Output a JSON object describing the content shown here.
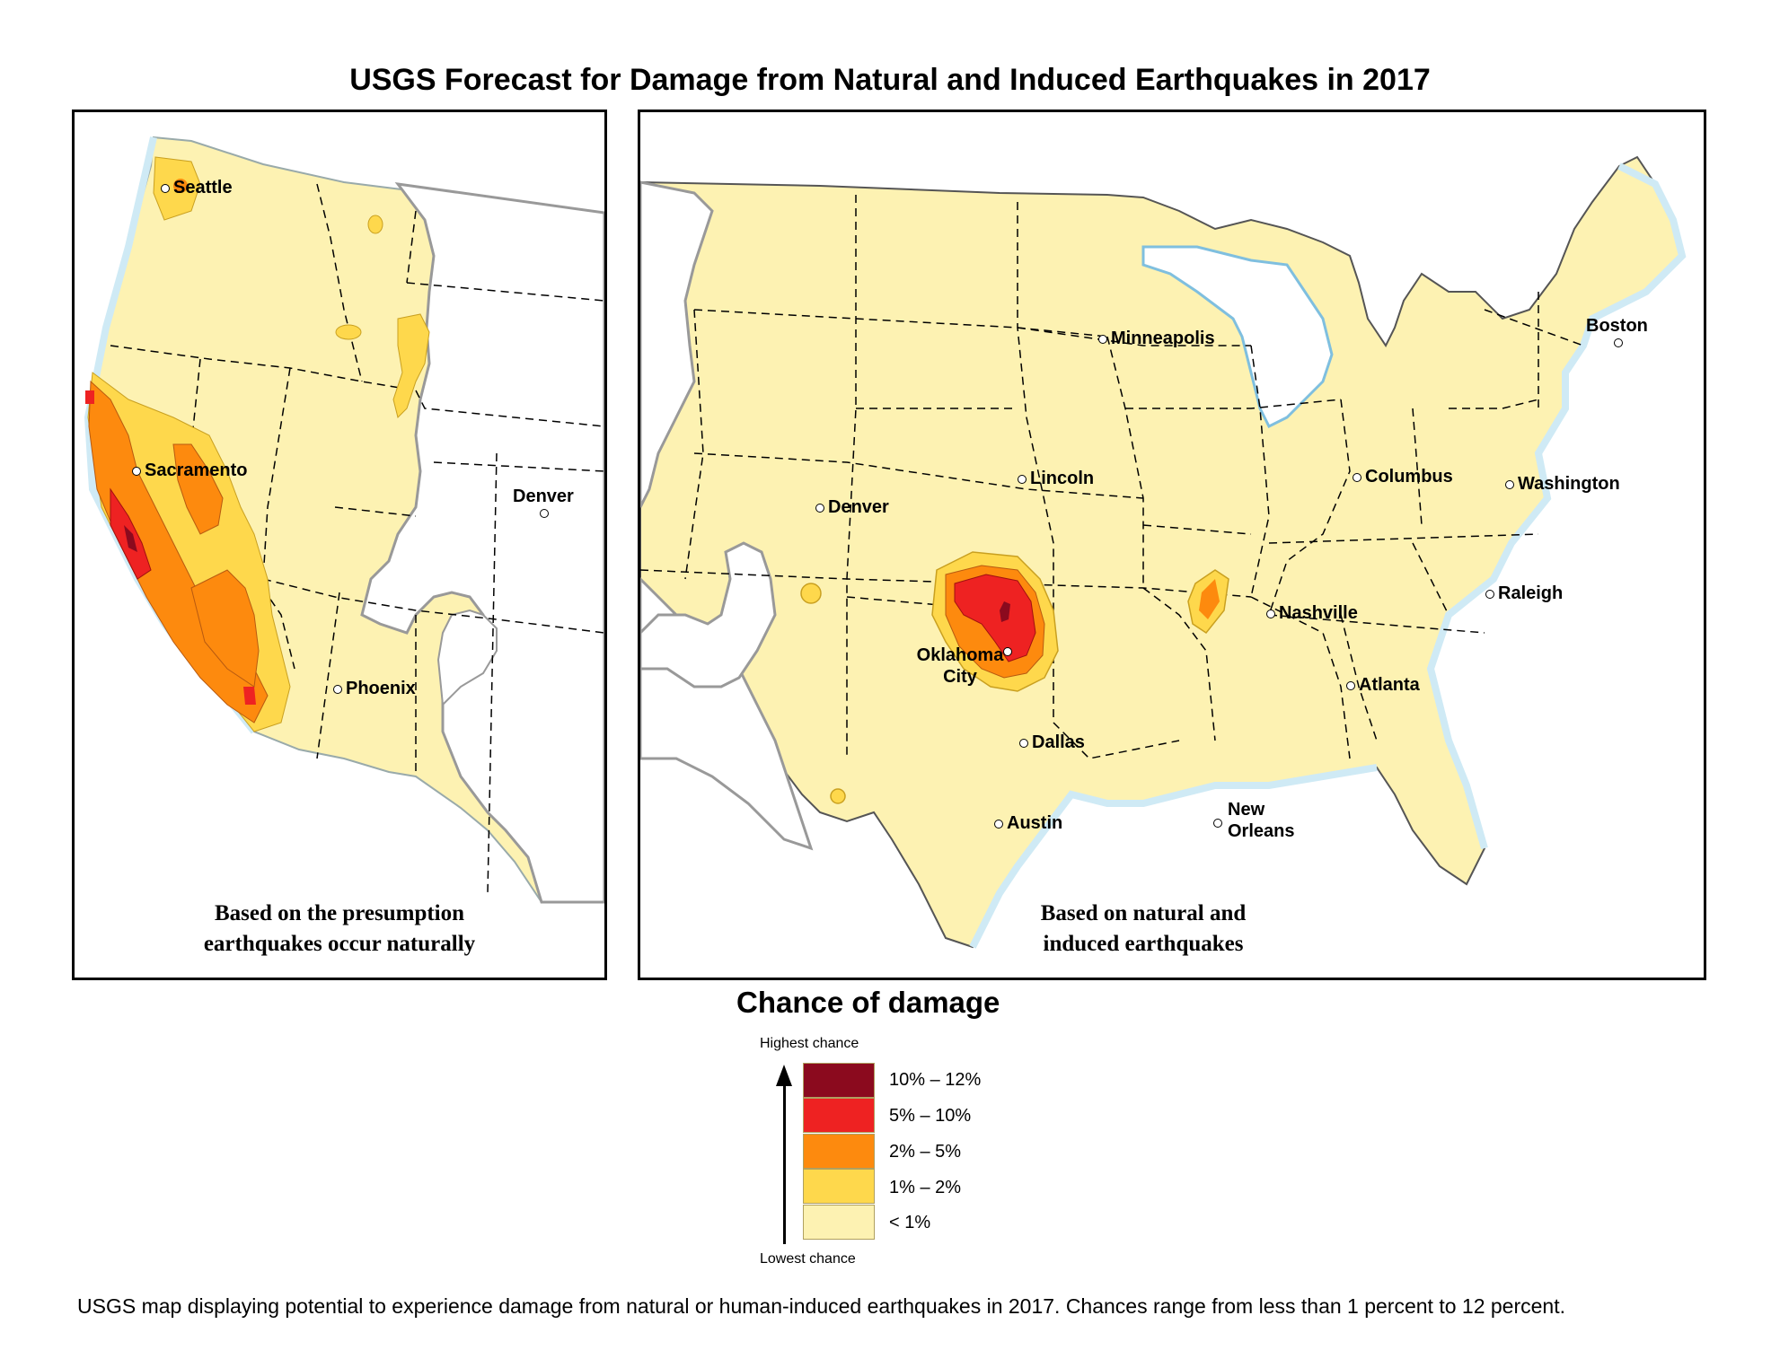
{
  "title": "USGS Forecast for Damage from Natural and Induced Earthquakes in 2017",
  "left_map": {
    "caption_line1": "Based on the presumption",
    "caption_line2": "earthquakes occur naturally",
    "cities": [
      "Seattle",
      "Sacramento",
      "Denver",
      "Phoenix"
    ]
  },
  "right_map": {
    "caption_line1": "Based on natural and",
    "caption_line2": "induced earthquakes",
    "cities": [
      "Minneapolis",
      "Boston",
      "Lincoln",
      "Columbus",
      "Washington",
      "Denver",
      "Oklahoma",
      "City",
      "Nashville",
      "Raleigh",
      "Atlanta",
      "Dallas",
      "Austin",
      "New",
      "Orleans"
    ]
  },
  "legend": {
    "title": "Chance of damage",
    "highest": "Highest chance",
    "lowest": "Lowest chance",
    "items": [
      {
        "label": "10% – 12%",
        "color": "#8b0a1e"
      },
      {
        "label": "5% – 10%",
        "color": "#ee2222"
      },
      {
        "label": "2% – 5%",
        "color": "#fd8a0e"
      },
      {
        "label": "1% – 2%",
        "color": "#fed84c"
      },
      {
        "label": "< 1%",
        "color": "#fdf2b2"
      }
    ]
  },
  "colors": {
    "land": "#fdf2b2",
    "water": "#cfeaf5",
    "outside": "#ffffff"
  },
  "footer": "USGS map displaying potential to experience damage from natural or human-induced earthquakes in 2017. Chances range from less than 1 percent to 12 percent."
}
